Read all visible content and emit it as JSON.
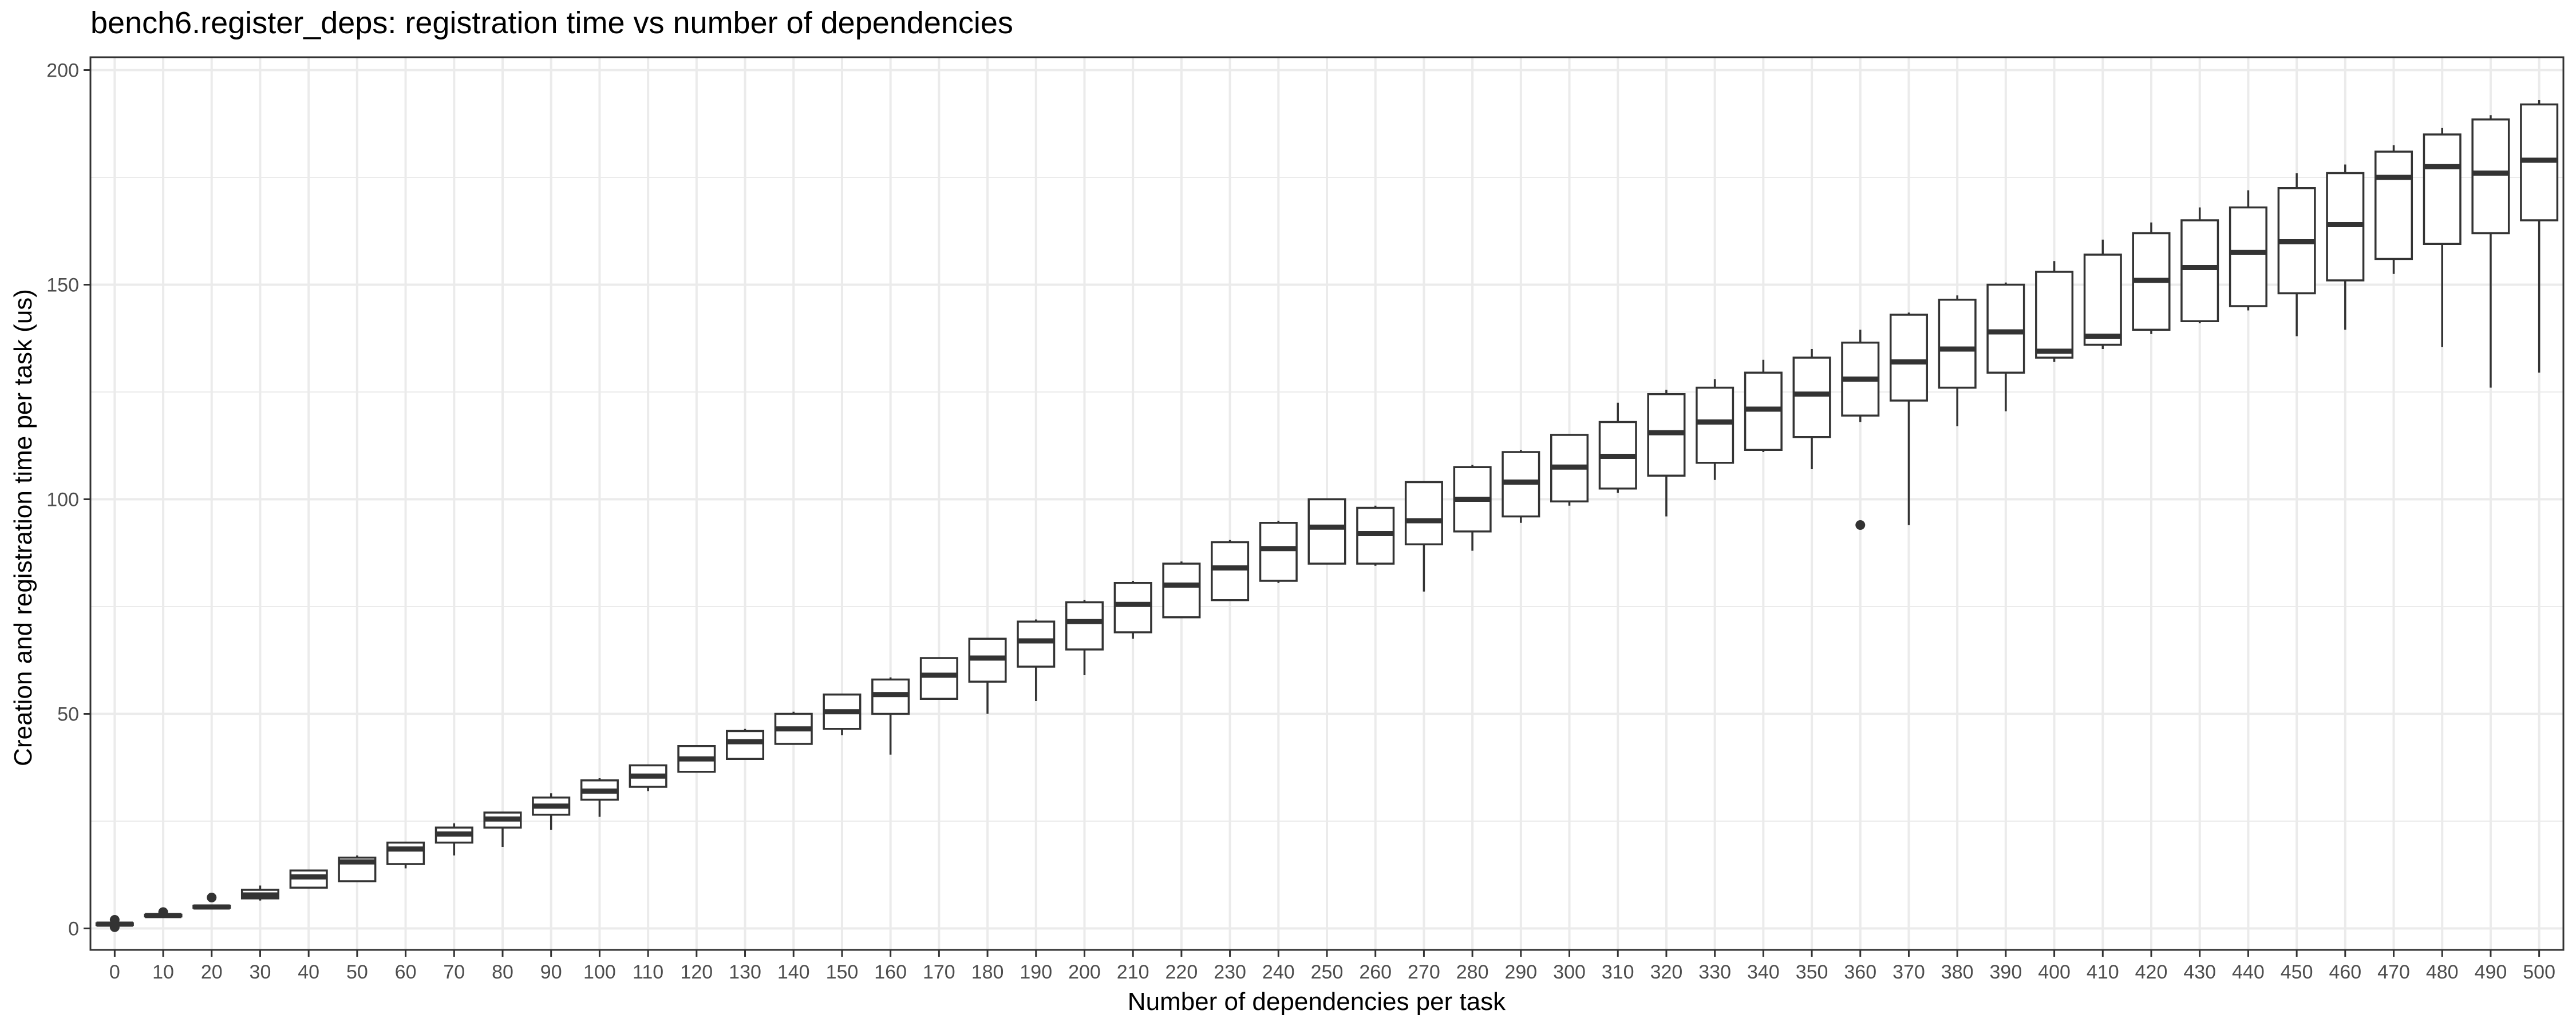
{
  "chart_data": {
    "type": "box",
    "title": "bench6.register_deps: registration time vs number of dependencies",
    "xlabel": "Number of dependencies per task",
    "ylabel": "Creation and registration time per task (us)",
    "ylim": [
      -5,
      203
    ],
    "yticks": [
      0,
      50,
      100,
      150,
      200
    ],
    "grid": true,
    "legend": "none",
    "colors": {
      "box_fill": "#ffffff",
      "box_stroke": "#333333",
      "grid": "#ebebeb",
      "panel_border": "#333333"
    },
    "categories": [
      "0",
      "10",
      "20",
      "30",
      "40",
      "50",
      "60",
      "70",
      "80",
      "90",
      "100",
      "110",
      "120",
      "130",
      "140",
      "150",
      "160",
      "170",
      "180",
      "190",
      "200",
      "210",
      "220",
      "230",
      "240",
      "250",
      "260",
      "270",
      "280",
      "290",
      "300",
      "310",
      "320",
      "330",
      "340",
      "350",
      "360",
      "370",
      "380",
      "390",
      "400",
      "410",
      "420",
      "430",
      "440",
      "450",
      "460",
      "470",
      "480",
      "490",
      "500"
    ],
    "boxes": [
      {
        "x": "0",
        "whisker_low": 0.5,
        "q1": 0.8,
        "median": 1.0,
        "q3": 1.2,
        "whisker_high": 1.5,
        "outliers": [
          2.0,
          0.3
        ]
      },
      {
        "x": "10",
        "whisker_low": 2.5,
        "q1": 2.8,
        "median": 3.0,
        "q3": 3.2,
        "whisker_high": 3.4,
        "outliers": [
          3.8
        ]
      },
      {
        "x": "20",
        "whisker_low": 4.6,
        "q1": 4.8,
        "median": 5.0,
        "q3": 5.3,
        "whisker_high": 5.6,
        "outliers": [
          7.2
        ]
      },
      {
        "x": "30",
        "whisker_low": 6.5,
        "q1": 7.0,
        "median": 7.8,
        "q3": 9.0,
        "whisker_high": 10.0,
        "outliers": []
      },
      {
        "x": "40",
        "whisker_low": 9.5,
        "q1": 9.5,
        "median": 12.0,
        "q3": 13.5,
        "whisker_high": 13.5,
        "outliers": []
      },
      {
        "x": "50",
        "whisker_low": 11.0,
        "q1": 11.0,
        "median": 15.5,
        "q3": 16.5,
        "whisker_high": 17.0,
        "outliers": []
      },
      {
        "x": "60",
        "whisker_low": 14.0,
        "q1": 15.0,
        "median": 18.5,
        "q3": 20.0,
        "whisker_high": 20.0,
        "outliers": []
      },
      {
        "x": "70",
        "whisker_low": 17.0,
        "q1": 20.0,
        "median": 22.0,
        "q3": 23.5,
        "whisker_high": 24.5,
        "outliers": []
      },
      {
        "x": "80",
        "whisker_low": 19.0,
        "q1": 23.5,
        "median": 25.5,
        "q3": 27.0,
        "whisker_high": 27.0,
        "outliers": []
      },
      {
        "x": "90",
        "whisker_low": 23.0,
        "q1": 26.5,
        "median": 28.5,
        "q3": 30.5,
        "whisker_high": 31.5,
        "outliers": []
      },
      {
        "x": "100",
        "whisker_low": 26.0,
        "q1": 30.0,
        "median": 32.0,
        "q3": 34.5,
        "whisker_high": 35.0,
        "outliers": []
      },
      {
        "x": "110",
        "whisker_low": 32.0,
        "q1": 33.0,
        "median": 35.5,
        "q3": 38.0,
        "whisker_high": 38.0,
        "outliers": []
      },
      {
        "x": "120",
        "whisker_low": 36.5,
        "q1": 36.5,
        "median": 39.5,
        "q3": 42.5,
        "whisker_high": 42.5,
        "outliers": []
      },
      {
        "x": "130",
        "whisker_low": 39.5,
        "q1": 39.5,
        "median": 43.5,
        "q3": 46.0,
        "whisker_high": 46.5,
        "outliers": []
      },
      {
        "x": "140",
        "whisker_low": 43.0,
        "q1": 43.0,
        "median": 46.5,
        "q3": 50.0,
        "whisker_high": 50.5,
        "outliers": []
      },
      {
        "x": "150",
        "whisker_low": 45.0,
        "q1": 46.5,
        "median": 50.5,
        "q3": 54.5,
        "whisker_high": 54.5,
        "outliers": []
      },
      {
        "x": "160",
        "whisker_low": 40.5,
        "q1": 50.0,
        "median": 54.5,
        "q3": 58.0,
        "whisker_high": 58.5,
        "outliers": []
      },
      {
        "x": "170",
        "whisker_low": 53.5,
        "q1": 53.5,
        "median": 59.0,
        "q3": 63.0,
        "whisker_high": 63.0,
        "outliers": []
      },
      {
        "x": "180",
        "whisker_low": 50.0,
        "q1": 57.5,
        "median": 63.0,
        "q3": 67.5,
        "whisker_high": 67.5,
        "outliers": []
      },
      {
        "x": "190",
        "whisker_low": 53.0,
        "q1": 61.0,
        "median": 67.0,
        "q3": 71.5,
        "whisker_high": 72.0,
        "outliers": []
      },
      {
        "x": "200",
        "whisker_low": 59.0,
        "q1": 65.0,
        "median": 71.5,
        "q3": 76.0,
        "whisker_high": 76.5,
        "outliers": []
      },
      {
        "x": "210",
        "whisker_low": 67.5,
        "q1": 69.0,
        "median": 75.5,
        "q3": 80.5,
        "whisker_high": 81.0,
        "outliers": []
      },
      {
        "x": "220",
        "whisker_low": 72.5,
        "q1": 72.5,
        "median": 80.0,
        "q3": 85.0,
        "whisker_high": 85.5,
        "outliers": []
      },
      {
        "x": "230",
        "whisker_low": 76.5,
        "q1": 76.5,
        "median": 84.0,
        "q3": 90.0,
        "whisker_high": 90.5,
        "outliers": []
      },
      {
        "x": "240",
        "whisker_low": 80.5,
        "q1": 81.0,
        "median": 88.5,
        "q3": 94.5,
        "whisker_high": 95.0,
        "outliers": []
      },
      {
        "x": "250",
        "whisker_low": 85.0,
        "q1": 85.0,
        "median": 93.5,
        "q3": 100.0,
        "whisker_high": 100.0,
        "outliers": []
      },
      {
        "x": "260",
        "whisker_low": 84.5,
        "q1": 85.0,
        "median": 92.0,
        "q3": 98.0,
        "whisker_high": 98.5,
        "outliers": []
      },
      {
        "x": "270",
        "whisker_low": 78.5,
        "q1": 89.5,
        "median": 95.0,
        "q3": 104.0,
        "whisker_high": 104.0,
        "outliers": []
      },
      {
        "x": "280",
        "whisker_low": 88.0,
        "q1": 92.5,
        "median": 100.0,
        "q3": 107.5,
        "whisker_high": 108.0,
        "outliers": []
      },
      {
        "x": "290",
        "whisker_low": 94.5,
        "q1": 96.0,
        "median": 104.0,
        "q3": 111.0,
        "whisker_high": 111.5,
        "outliers": []
      },
      {
        "x": "300",
        "whisker_low": 98.5,
        "q1": 99.5,
        "median": 107.5,
        "q3": 115.0,
        "whisker_high": 115.0,
        "outliers": []
      },
      {
        "x": "310",
        "whisker_low": 101.5,
        "q1": 102.5,
        "median": 110.0,
        "q3": 118.0,
        "whisker_high": 122.5,
        "outliers": []
      },
      {
        "x": "320",
        "whisker_low": 96.0,
        "q1": 105.5,
        "median": 115.5,
        "q3": 124.5,
        "whisker_high": 125.5,
        "outliers": []
      },
      {
        "x": "330",
        "whisker_low": 104.5,
        "q1": 108.5,
        "median": 118.0,
        "q3": 126.0,
        "whisker_high": 128.0,
        "outliers": []
      },
      {
        "x": "340",
        "whisker_low": 111.0,
        "q1": 111.5,
        "median": 121.0,
        "q3": 129.5,
        "whisker_high": 132.5,
        "outliers": []
      },
      {
        "x": "350",
        "whisker_low": 107.0,
        "q1": 114.5,
        "median": 124.5,
        "q3": 133.0,
        "whisker_high": 135.0,
        "outliers": []
      },
      {
        "x": "360",
        "whisker_low": 118.0,
        "q1": 119.5,
        "median": 128.0,
        "q3": 136.5,
        "whisker_high": 139.5,
        "outliers": [
          94.0
        ]
      },
      {
        "x": "370",
        "whisker_low": 94.0,
        "q1": 123.0,
        "median": 132.0,
        "q3": 143.0,
        "whisker_high": 143.5,
        "outliers": []
      },
      {
        "x": "380",
        "whisker_low": 117.0,
        "q1": 126.0,
        "median": 135.0,
        "q3": 146.5,
        "whisker_high": 147.5,
        "outliers": []
      },
      {
        "x": "390",
        "whisker_low": 120.5,
        "q1": 129.5,
        "median": 139.0,
        "q3": 150.0,
        "whisker_high": 150.5,
        "outliers": []
      },
      {
        "x": "400",
        "whisker_low": 132.0,
        "q1": 133.0,
        "median": 134.5,
        "q3": 153.0,
        "whisker_high": 155.5,
        "outliers": []
      },
      {
        "x": "410",
        "whisker_low": 135.0,
        "q1": 136.0,
        "median": 138.0,
        "q3": 157.0,
        "whisker_high": 160.5,
        "outliers": []
      },
      {
        "x": "420",
        "whisker_low": 138.5,
        "q1": 139.5,
        "median": 151.0,
        "q3": 162.0,
        "whisker_high": 164.5,
        "outliers": []
      },
      {
        "x": "430",
        "whisker_low": 141.0,
        "q1": 141.5,
        "median": 154.0,
        "q3": 165.0,
        "whisker_high": 168.0,
        "outliers": []
      },
      {
        "x": "440",
        "whisker_low": 144.0,
        "q1": 145.0,
        "median": 157.5,
        "q3": 168.0,
        "whisker_high": 172.0,
        "outliers": []
      },
      {
        "x": "450",
        "whisker_low": 138.0,
        "q1": 148.0,
        "median": 160.0,
        "q3": 172.5,
        "whisker_high": 176.0,
        "outliers": []
      },
      {
        "x": "460",
        "whisker_low": 139.5,
        "q1": 151.0,
        "median": 164.0,
        "q3": 176.0,
        "whisker_high": 178.0,
        "outliers": []
      },
      {
        "x": "470",
        "whisker_low": 152.5,
        "q1": 156.0,
        "median": 175.0,
        "q3": 181.0,
        "whisker_high": 182.5,
        "outliers": []
      },
      {
        "x": "480",
        "whisker_low": 135.5,
        "q1": 159.5,
        "median": 177.5,
        "q3": 185.0,
        "whisker_high": 186.5,
        "outliers": []
      },
      {
        "x": "490",
        "whisker_low": 126.0,
        "q1": 162.0,
        "median": 176.0,
        "q3": 188.5,
        "whisker_high": 189.5,
        "outliers": []
      },
      {
        "x": "500",
        "whisker_low": 129.5,
        "q1": 165.0,
        "median": 179.0,
        "q3": 192.0,
        "whisker_high": 193.0,
        "outliers": []
      }
    ]
  }
}
